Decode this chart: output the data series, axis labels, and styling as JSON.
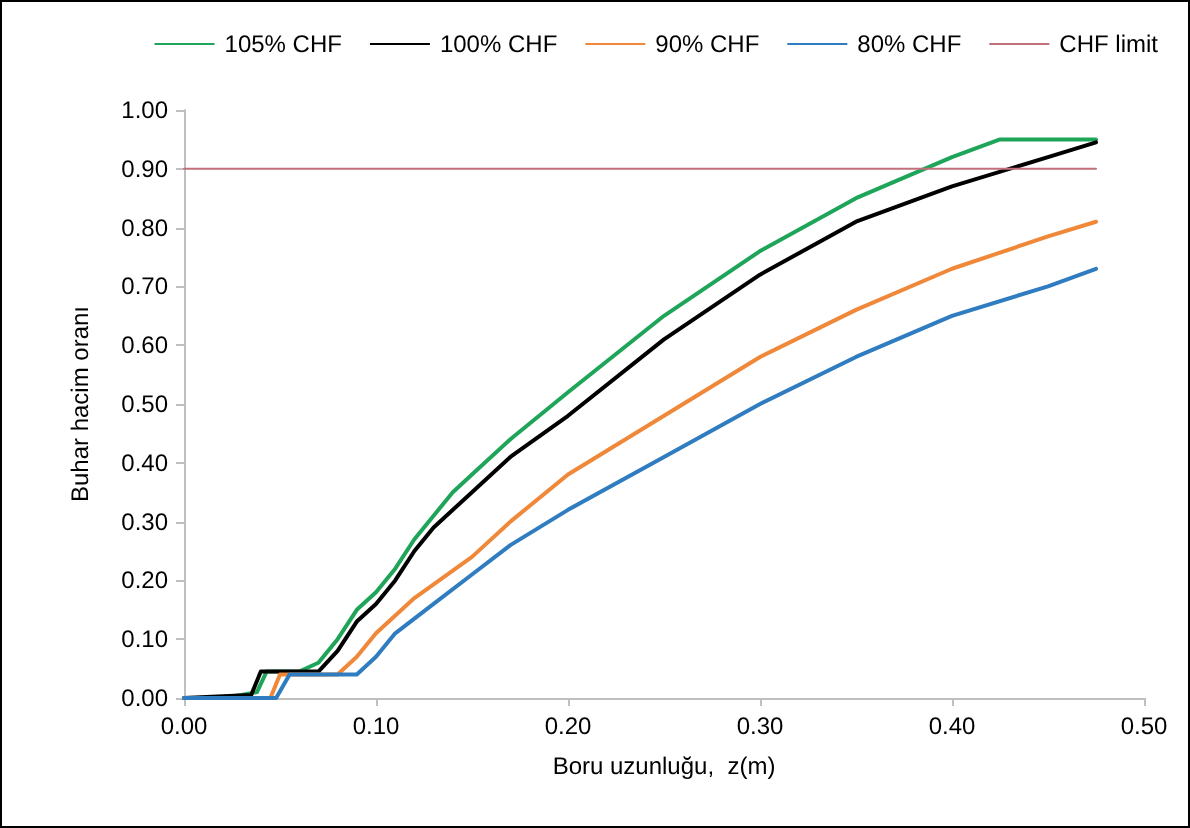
{
  "chart_data": {
    "type": "line",
    "xlabel": "Boru uzunluğu,  z(m)",
    "ylabel": "Buhar hacim oranı",
    "series": [
      {
        "name": "105% CHF",
        "color": "#1fa55a",
        "x": [
          0,
          0.02,
          0.03,
          0.038,
          0.043,
          0.05,
          0.06,
          0.07,
          0.08,
          0.09,
          0.1,
          0.11,
          0.12,
          0.13,
          0.14,
          0.15,
          0.17,
          0.2,
          0.25,
          0.3,
          0.35,
          0.4,
          0.425,
          0.475
        ],
        "values": [
          0,
          0,
          0.005,
          0.01,
          0.045,
          0.045,
          0.045,
          0.06,
          0.1,
          0.15,
          0.18,
          0.22,
          0.27,
          0.31,
          0.35,
          0.38,
          0.44,
          0.52,
          0.65,
          0.76,
          0.85,
          0.92,
          0.95,
          0.95
        ]
      },
      {
        "name": "100% CHF",
        "color": "#000000",
        "x": [
          0,
          0.035,
          0.04,
          0.07,
          0.08,
          0.09,
          0.1,
          0.11,
          0.12,
          0.13,
          0.15,
          0.17,
          0.2,
          0.25,
          0.3,
          0.35,
          0.4,
          0.45,
          0.475
        ],
        "values": [
          0,
          0.005,
          0.045,
          0.045,
          0.08,
          0.13,
          0.16,
          0.2,
          0.25,
          0.29,
          0.35,
          0.41,
          0.48,
          0.61,
          0.72,
          0.81,
          0.87,
          0.92,
          0.945
        ]
      },
      {
        "name": "90% CHF",
        "color": "#f0883a",
        "x": [
          0,
          0.045,
          0.05,
          0.08,
          0.09,
          0.1,
          0.12,
          0.15,
          0.17,
          0.2,
          0.25,
          0.3,
          0.35,
          0.4,
          0.45,
          0.475
        ],
        "values": [
          0,
          0,
          0.04,
          0.04,
          0.07,
          0.11,
          0.17,
          0.24,
          0.3,
          0.38,
          0.48,
          0.58,
          0.66,
          0.73,
          0.785,
          0.81
        ]
      },
      {
        "name": "80% CHF",
        "color": "#2f7dc0",
        "x": [
          0,
          0.048,
          0.055,
          0.09,
          0.1,
          0.11,
          0.13,
          0.15,
          0.17,
          0.2,
          0.25,
          0.3,
          0.35,
          0.4,
          0.45,
          0.475
        ],
        "values": [
          0,
          0,
          0.04,
          0.04,
          0.07,
          0.11,
          0.16,
          0.21,
          0.26,
          0.32,
          0.41,
          0.5,
          0.58,
          0.65,
          0.7,
          0.73
        ]
      },
      {
        "name": "CHF limit",
        "color": "#c0707a",
        "x": [
          0,
          0.475
        ],
        "values": [
          0.9,
          0.9
        ]
      }
    ],
    "xlim": [
      0,
      0.5
    ],
    "xticks": [
      {
        "value": 0,
        "label": "0.00"
      },
      {
        "value": 0.1,
        "label": "0.10"
      },
      {
        "value": 0.2,
        "label": "0.20"
      },
      {
        "value": 0.3,
        "label": "0.30"
      },
      {
        "value": 0.4,
        "label": "0.40"
      },
      {
        "value": 0.5,
        "label": "0.50"
      }
    ],
    "ylim": [
      0,
      1
    ],
    "yticks": [
      {
        "value": 0,
        "label": "0.00"
      },
      {
        "value": 0.1,
        "label": "0.10"
      },
      {
        "value": 0.2,
        "label": "0.20"
      },
      {
        "value": 0.3,
        "label": "0.30"
      },
      {
        "value": 0.4,
        "label": "0.40"
      },
      {
        "value": 0.5,
        "label": "0.50"
      },
      {
        "value": 0.6,
        "label": "0.60"
      },
      {
        "value": 0.7,
        "label": "0.70"
      },
      {
        "value": 0.8,
        "label": "0.80"
      },
      {
        "value": 0.9,
        "label": "0.90"
      },
      {
        "value": 1,
        "label": "1.00"
      }
    ],
    "grid": false,
    "legend": "top",
    "marker": "none",
    "line_style": "solid"
  }
}
